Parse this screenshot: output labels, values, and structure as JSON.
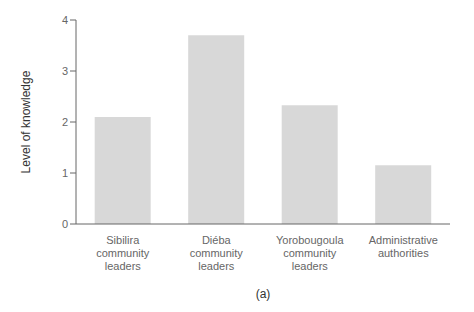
{
  "chart_data": {
    "type": "bar",
    "categories": [
      "Sibilira\ncommunity\nleaders",
      "Diéba\ncommunity\nleaders",
      "Yorobougoula\ncommunity\nleaders",
      "Administrative\nauthorities"
    ],
    "values": [
      2.1,
      3.7,
      2.33,
      1.15
    ],
    "color": "#d8d8d8",
    "ylabel": "Level of knowledge",
    "xlabel": "(a)",
    "ylim": [
      0,
      4
    ],
    "yticks": [
      0,
      1,
      2,
      3,
      4
    ],
    "grid": false
  }
}
